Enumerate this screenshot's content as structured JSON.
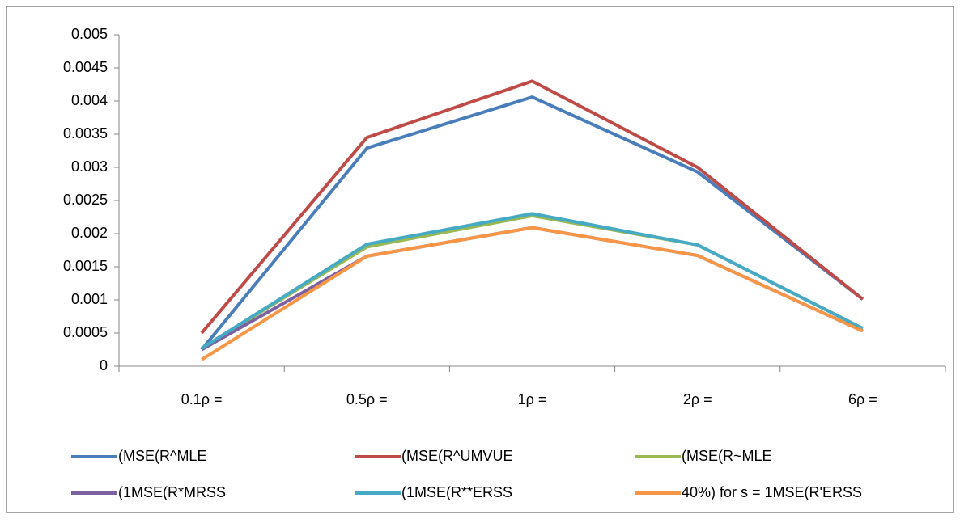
{
  "chart_data": {
    "type": "line",
    "categories": [
      "0.1ρ =",
      "0.5ρ =",
      "1ρ =",
      "2ρ =",
      "6ρ ="
    ],
    "series": [
      {
        "name": "(MSE(R^MLE",
        "color": "#4a7ebb",
        "values": [
          0.00025,
          0.00329,
          0.00406,
          0.00293,
          0.00101
        ]
      },
      {
        "name": "(MSE(R^UMVUE",
        "color": "#be4b48",
        "values": [
          0.0005,
          0.00345,
          0.0043,
          0.003,
          0.00101
        ]
      },
      {
        "name": "(MSE(R~MLE",
        "color": "#98b954",
        "values": [
          0.00027,
          0.0018,
          0.00227,
          0.00183,
          0.00057
        ]
      },
      {
        "name": "(1MSE(R*MRSS",
        "color": "#7d60a0",
        "values": [
          0.00025,
          0.00166,
          0.00209,
          0.00167,
          0.00053
        ]
      },
      {
        "name": "(1MSE(R**ERSS",
        "color": "#46aac5",
        "values": [
          0.00027,
          0.00184,
          0.0023,
          0.00183,
          0.00057
        ]
      },
      {
        "name": "40%) for s = 1MSE(R'ERSS",
        "color": "#f79646",
        "values": [
          0.0001,
          0.00166,
          0.00209,
          0.00167,
          0.00053
        ]
      }
    ],
    "ylim": [
      0,
      0.005
    ],
    "yticks": [
      0,
      0.0005,
      0.001,
      0.0015,
      0.002,
      0.0025,
      0.003,
      0.0035,
      0.004,
      0.0045,
      0.005
    ],
    "grid": false
  }
}
